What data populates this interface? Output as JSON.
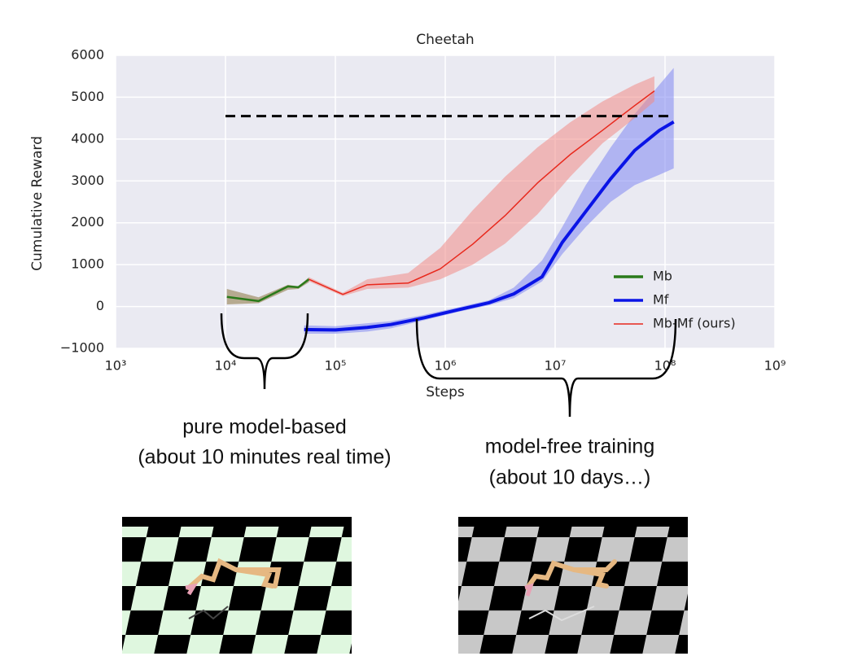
{
  "chart_data": {
    "type": "line",
    "title": "Cheetah",
    "x_label": "Steps",
    "y_label": "Cumulative Reward",
    "xscale": "log",
    "grid": true,
    "legend": "lower right",
    "xlim": [
      1000,
      1000000000
    ],
    "xticks": [
      {
        "value": 1000,
        "label": "10³"
      },
      {
        "value": 10000,
        "label": "10⁴"
      },
      {
        "value": 100000,
        "label": "10⁵"
      },
      {
        "value": 1000000,
        "label": "10⁶"
      },
      {
        "value": 10000000,
        "label": "10⁷"
      },
      {
        "value": 100000000,
        "label": "10⁸"
      },
      {
        "value": 1000000000,
        "label": "10⁹"
      }
    ],
    "ylim": [
      -1000,
      6000
    ],
    "yticks": [
      {
        "value": -1000,
        "label": "−1000"
      },
      0,
      1000,
      2000,
      3000,
      4000,
      5000,
      6000
    ],
    "reference_line": {
      "value": 4550,
      "x": [
        10000,
        120000000
      ],
      "color": "#000000"
    },
    "series": [
      {
        "name": "Mb",
        "color": "#2a7a1a",
        "band_color": "#8a7440",
        "x": [
          10300,
          20000,
          37000,
          46000,
          57500
        ],
        "values": [
          230,
          130,
          480,
          460,
          650
        ],
        "lower": [
          50,
          80,
          400,
          420,
          580
        ],
        "upper": [
          420,
          220,
          520,
          480,
          700
        ]
      },
      {
        "name": "Mf",
        "color": "#0a14e6",
        "band_color": "#7f86f2",
        "x": [
          52000,
          100000,
          195000,
          320000,
          640000,
          1300000,
          2500000,
          4200000,
          7600000,
          11600000,
          19000000,
          32000000,
          53000000,
          89000000,
          120000000
        ],
        "values": [
          -550,
          -560,
          -500,
          -430,
          -270,
          -80,
          90,
          300,
          710,
          1530,
          2270,
          3050,
          3730,
          4210,
          4410
        ],
        "lower": [
          -650,
          -650,
          -600,
          -520,
          -330,
          -130,
          30,
          200,
          600,
          1250,
          1900,
          2500,
          2900,
          3150,
          3300
        ],
        "upper": [
          -450,
          -470,
          -400,
          -350,
          -200,
          -20,
          150,
          450,
          1100,
          1900,
          2900,
          3800,
          4600,
          5300,
          5700
        ]
      },
      {
        "name": "Mb-Mf (ours)",
        "color": "#e8281c",
        "band_color": "#f08a86",
        "x": [
          57500,
          117000,
          195000,
          460000,
          900000,
          1780000,
          3500000,
          6900000,
          13700000,
          27000000,
          53000000,
          80000000
        ],
        "values": [
          650,
          290,
          520,
          560,
          900,
          1490,
          2170,
          2950,
          3630,
          4210,
          4800,
          5150
        ],
        "lower": [
          600,
          250,
          420,
          450,
          650,
          1000,
          1500,
          2200,
          3100,
          3900,
          4500,
          4900
        ],
        "upper": [
          700,
          330,
          650,
          800,
          1400,
          2300,
          3100,
          3800,
          4400,
          4900,
          5300,
          5500
        ]
      }
    ]
  },
  "annotations": [
    "pure model-based",
    "(about 10 minutes real time)",
    "model-free training",
    "(about 10 days…)"
  ]
}
